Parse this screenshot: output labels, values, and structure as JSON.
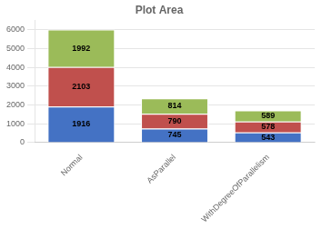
{
  "chart_data": {
    "type": "bar",
    "title": "Plot Area",
    "categories": [
      "Normal",
      "AsParallel",
      "WithDegreeOfParallelism"
    ],
    "series": [
      {
        "color": "#4472c4",
        "values": [
          1916,
          745,
          543
        ]
      },
      {
        "color": "#c0504d",
        "values": [
          2103,
          790,
          578
        ]
      },
      {
        "color": "#9bbb59",
        "values": [
          1992,
          814,
          589
        ]
      }
    ],
    "ylim": [
      0,
      6500
    ],
    "yticks": [
      0,
      1000,
      2000,
      3000,
      4000,
      5000,
      6000
    ],
    "grid": true,
    "stacked": true,
    "data_labels": true
  }
}
